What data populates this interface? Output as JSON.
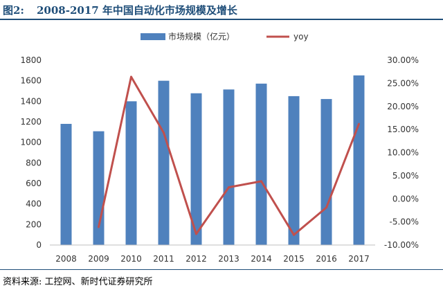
{
  "figure": {
    "label": "图2:",
    "title": "2008-2017 年中国自动化市场规模及增长",
    "source": "资料来源: 工控网、新时代证券研究所"
  },
  "chart_data": {
    "type": "bar",
    "title": "2008-2017 年中国自动化市场规模及增长",
    "categories": [
      "2008",
      "2009",
      "2010",
      "2011",
      "2012",
      "2013",
      "2014",
      "2015",
      "2016",
      "2017"
    ],
    "series": [
      {
        "name": "市场规模（亿元）",
        "type": "bar",
        "axis": "left",
        "color": "#4f81bd",
        "values": [
          1180,
          1108,
          1400,
          1600,
          1478,
          1515,
          1572,
          1450,
          1422,
          1652
        ]
      },
      {
        "name": "yoy",
        "type": "line",
        "axis": "right",
        "color": "#c0504d",
        "values": [
          null,
          -6.1,
          26.4,
          14.3,
          -7.6,
          2.5,
          3.8,
          -7.8,
          -1.9,
          16.2
        ]
      }
    ],
    "y_left": {
      "min": 0,
      "max": 1800,
      "step": 200,
      "ticks": [
        "0",
        "200",
        "400",
        "600",
        "800",
        "1000",
        "1200",
        "1400",
        "1600",
        "1800"
      ]
    },
    "y_right": {
      "min": -10,
      "max": 30,
      "step": 5,
      "ticks": [
        "-10.00%",
        "-5.00%",
        "0.00%",
        "5.00%",
        "10.00%",
        "15.00%",
        "20.00%",
        "25.00%",
        "30.00%"
      ]
    },
    "legend_position": "top",
    "grid": false
  }
}
